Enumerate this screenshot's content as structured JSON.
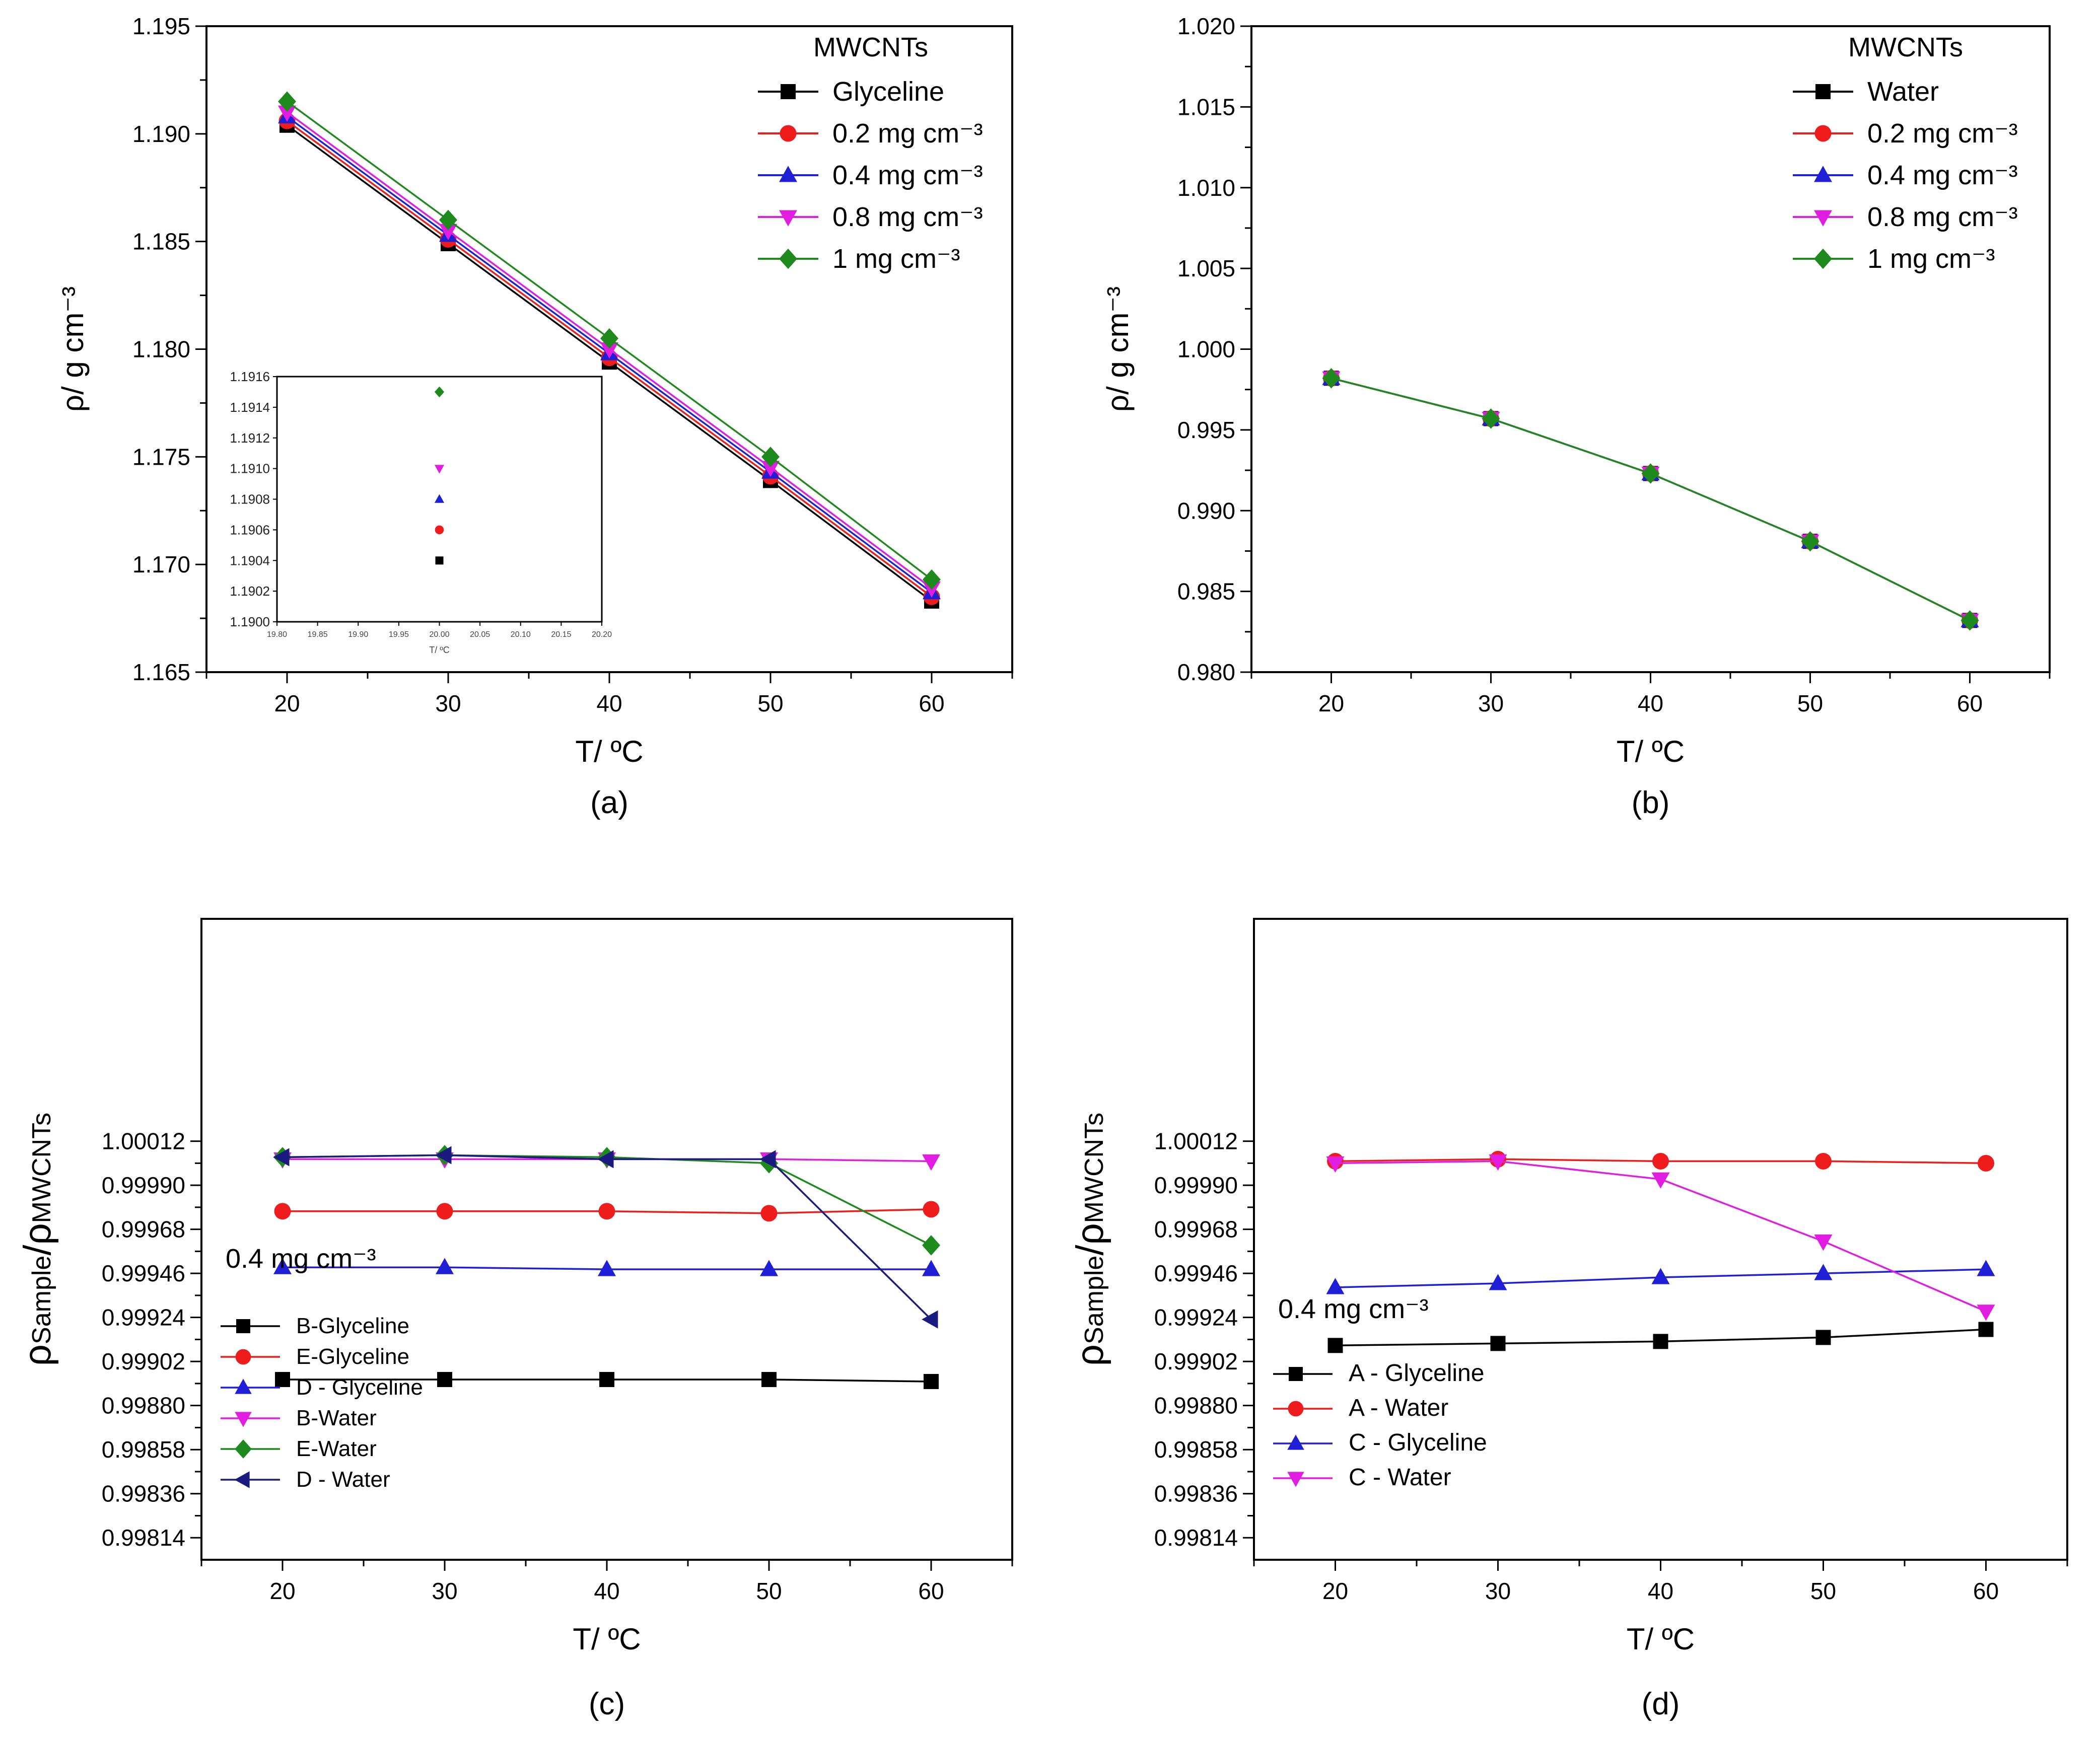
{
  "colors": {
    "black": "#000000",
    "red": "#ee1c1c",
    "blue": "#1f1fd6",
    "magenta": "#e11de1",
    "green": "#1e8a1e",
    "navy": "#1a1a80"
  },
  "chart_data": [
    {
      "id": "a",
      "type": "line",
      "panel_label": "(a)",
      "xlabel": "T/ ºC",
      "ylabel": "ρ/ g cm⁻³",
      "x": [
        20,
        30,
        40,
        50,
        60
      ],
      "xlim": [
        15,
        65
      ],
      "ylim": [
        1.165,
        1.195
      ],
      "xticks": [
        "20",
        "30",
        "40",
        "50",
        "60"
      ],
      "yticks": [
        "1.165",
        "1.170",
        "1.175",
        "1.180",
        "1.185",
        "1.190",
        "1.195"
      ],
      "legend_title": "MWCNTs",
      "legend_position": "top-right",
      "series": [
        {
          "name": "Glyceline",
          "color": "#000000",
          "marker": "square",
          "values": [
            1.1904,
            1.1849,
            1.1794,
            1.1739,
            1.1683
          ]
        },
        {
          "name": "0.2 mg cm⁻³",
          "color": "#ee1c1c",
          "marker": "circle",
          "values": [
            1.1906,
            1.1851,
            1.1796,
            1.1741,
            1.1685
          ]
        },
        {
          "name": "0.4 mg cm⁻³",
          "color": "#1f1fd6",
          "marker": "triangle-up",
          "values": [
            1.1908,
            1.1853,
            1.1798,
            1.1743,
            1.1687
          ]
        },
        {
          "name": "0.8 mg cm⁻³",
          "color": "#e11de1",
          "marker": "triangle-down",
          "values": [
            1.191,
            1.1855,
            1.18,
            1.1745,
            1.1689
          ]
        },
        {
          "name": "1 mg cm⁻³",
          "color": "#1e8a1e",
          "marker": "diamond",
          "values": [
            1.1915,
            1.186,
            1.1805,
            1.175,
            1.1693
          ]
        }
      ],
      "inset": {
        "type": "scatter",
        "xlabel": "T/ ºC",
        "xlim": [
          19.8,
          20.2
        ],
        "ylim": [
          1.19,
          1.1916
        ],
        "xticks": [
          "19.80",
          "19.85",
          "19.90",
          "19.95",
          "20.00",
          "20.05",
          "20.10",
          "20.15",
          "20.20"
        ],
        "yticks": [
          "1.1900",
          "1.1902",
          "1.1904",
          "1.1906",
          "1.1908",
          "1.1910",
          "1.1912",
          "1.1914",
          "1.1916"
        ],
        "points": [
          {
            "x": 20.0,
            "y": 1.1904,
            "color": "#000000",
            "marker": "square"
          },
          {
            "x": 20.0,
            "y": 1.1906,
            "color": "#ee1c1c",
            "marker": "circle"
          },
          {
            "x": 20.0,
            "y": 1.1908,
            "color": "#1f1fd6",
            "marker": "triangle-up"
          },
          {
            "x": 20.0,
            "y": 1.191,
            "color": "#e11de1",
            "marker": "triangle-down"
          },
          {
            "x": 20.0,
            "y": 1.1915,
            "color": "#1e8a1e",
            "marker": "diamond"
          }
        ]
      }
    },
    {
      "id": "b",
      "type": "line",
      "panel_label": "(b)",
      "xlabel": "T/ ºC",
      "ylabel": "ρ/ g cm⁻³",
      "x": [
        20,
        30,
        40,
        50,
        60
      ],
      "xlim": [
        15,
        65
      ],
      "ylim": [
        0.98,
        1.02
      ],
      "xticks": [
        "20",
        "30",
        "40",
        "50",
        "60"
      ],
      "yticks": [
        "0.980",
        "0.985",
        "0.990",
        "0.995",
        "1.000",
        "1.005",
        "1.010",
        "1.015",
        "1.020"
      ],
      "legend_title": "MWCNTs",
      "legend_position": "top-right",
      "series": [
        {
          "name": "Water",
          "color": "#000000",
          "marker": "square",
          "values": [
            0.9982,
            0.9957,
            0.9923,
            0.9881,
            0.9832
          ]
        },
        {
          "name": "0.2 mg cm⁻³",
          "color": "#ee1c1c",
          "marker": "circle",
          "values": [
            0.9982,
            0.9957,
            0.9923,
            0.9881,
            0.9832
          ]
        },
        {
          "name": "0.4 mg cm⁻³",
          "color": "#1f1fd6",
          "marker": "triangle-up",
          "values": [
            0.9982,
            0.9957,
            0.9923,
            0.9881,
            0.9832
          ]
        },
        {
          "name": "0.8 mg cm⁻³",
          "color": "#e11de1",
          "marker": "triangle-down",
          "values": [
            0.9982,
            0.9957,
            0.9923,
            0.9881,
            0.9832
          ]
        },
        {
          "name": "1 mg cm⁻³",
          "color": "#1e8a1e",
          "marker": "diamond",
          "values": [
            0.9982,
            0.9957,
            0.9923,
            0.9881,
            0.9832
          ]
        }
      ]
    },
    {
      "id": "c",
      "type": "line",
      "panel_label": "(c)",
      "xlabel": "T/ ºC",
      "ylabel": "ρSample/ρMWCNTs",
      "ylabel_main": "ρ",
      "ylabel_sub1": "Sample",
      "ylabel_mid": "/ρ",
      "ylabel_sub2": "MWCNTs",
      "x": [
        20,
        30,
        40,
        50,
        60
      ],
      "xlim": [
        15,
        65
      ],
      "ylim": [
        0.99803,
        1.00123
      ],
      "xticks": [
        "20",
        "30",
        "40",
        "50",
        "60"
      ],
      "yticks": [
        "0.99814",
        "0.99836",
        "0.99858",
        "0.99880",
        "0.99902",
        "0.99924",
        "0.99946",
        "0.99968",
        "0.99990",
        "1.00012"
      ],
      "ytick_values": [
        0.99814,
        0.99836,
        0.99858,
        0.9988,
        0.99902,
        0.99924,
        0.99946,
        0.99968,
        0.9999,
        1.00012
      ],
      "legend_title": "0.4 mg cm⁻³",
      "legend_position": "bottom-left",
      "series": [
        {
          "name": "B-Glyceline",
          "color": "#000000",
          "marker": "square",
          "values": [
            0.99893,
            0.99893,
            0.99893,
            0.99893,
            0.99892
          ]
        },
        {
          "name": "E-Glyceline",
          "color": "#ee1c1c",
          "marker": "circle",
          "values": [
            0.99977,
            0.99977,
            0.99977,
            0.99976,
            0.99978
          ]
        },
        {
          "name": "D - Glyceline",
          "color": "#1f1fd6",
          "marker": "triangle-up",
          "values": [
            0.99949,
            0.99949,
            0.99948,
            0.99948,
            0.99948
          ]
        },
        {
          "name": "B-Water",
          "color": "#e11de1",
          "marker": "triangle-down",
          "values": [
            1.00003,
            1.00003,
            1.00003,
            1.00003,
            1.00002
          ]
        },
        {
          "name": "E-Water",
          "color": "#1e8a1e",
          "marker": "diamond",
          "values": [
            1.00004,
            1.00005,
            1.00004,
            1.00001,
            0.9996
          ]
        },
        {
          "name": "D - Water",
          "color": "#1a1a80",
          "marker": "triangle-left",
          "values": [
            1.00004,
            1.00005,
            1.00003,
            1.00003,
            0.99923
          ]
        }
      ]
    },
    {
      "id": "d",
      "type": "line",
      "panel_label": "(d)",
      "xlabel": "T/ ºC",
      "ylabel": "ρSample/ρMWCNTs",
      "ylabel_main": "ρ",
      "ylabel_sub1": "Sample",
      "ylabel_mid": "/ρ",
      "ylabel_sub2": "MWCNTs",
      "x": [
        20,
        30,
        40,
        50,
        60
      ],
      "xlim": [
        15,
        65
      ],
      "ylim": [
        0.99803,
        1.00123
      ],
      "xticks": [
        "20",
        "30",
        "40",
        "50",
        "60"
      ],
      "yticks": [
        "0.99814",
        "0.99836",
        "0.99858",
        "0.99880",
        "0.99902",
        "0.99924",
        "0.99946",
        "0.99968",
        "0.99990",
        "1.00012"
      ],
      "ytick_values": [
        0.99814,
        0.99836,
        0.99858,
        0.9988,
        0.99902,
        0.99924,
        0.99946,
        0.99968,
        0.9999,
        1.00012
      ],
      "legend_title": "0.4 mg cm⁻³",
      "legend_position": "bottom-left",
      "series": [
        {
          "name": "A - Glyceline",
          "color": "#000000",
          "marker": "square",
          "values": [
            0.9991,
            0.99911,
            0.99912,
            0.99914,
            0.99918
          ]
        },
        {
          "name": "A - Water",
          "color": "#ee1c1c",
          "marker": "circle",
          "values": [
            1.00002,
            1.00003,
            1.00002,
            1.00002,
            1.00001
          ]
        },
        {
          "name": "C - Glyceline",
          "color": "#1f1fd6",
          "marker": "triangle-up",
          "values": [
            0.99939,
            0.99941,
            0.99944,
            0.99946,
            0.99948
          ]
        },
        {
          "name": "C - Water",
          "color": "#e11de1",
          "marker": "triangle-down",
          "values": [
            1.00001,
            1.00002,
            0.99993,
            0.99962,
            0.99927
          ]
        }
      ]
    }
  ]
}
